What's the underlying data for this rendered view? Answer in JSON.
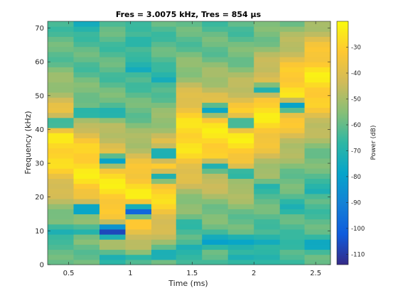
{
  "chart_data": {
    "type": "heatmap",
    "title": "Fres = 3.0075 kHz, Tres = 854 µs",
    "xlabel": "Time (ms)",
    "ylabel": "Frequency (kHz)",
    "colorbar_label": "Power (dB)",
    "xlim": [
      0.33,
      2.62
    ],
    "ylim": [
      0,
      72
    ],
    "clim": [
      -114,
      -20
    ],
    "x_ticks": [
      0.5,
      1,
      1.5,
      2,
      2.5
    ],
    "x_tick_labels": [
      "0.5",
      "1",
      "1.5",
      "2",
      "2.5"
    ],
    "y_ticks": [
      0,
      10,
      20,
      30,
      40,
      50,
      60,
      70
    ],
    "y_tick_labels": [
      "0",
      "10",
      "20",
      "30",
      "40",
      "50",
      "60",
      "70"
    ],
    "c_ticks": [
      -110,
      -100,
      -90,
      -80,
      -70,
      -60,
      -50,
      -40,
      -30
    ],
    "c_tick_labels": [
      "-110",
      "-100",
      "-90",
      "-80",
      "-70",
      "-60",
      "-50",
      "-40",
      "-30"
    ],
    "colormap": "parula",
    "time_frames_ms": [
      0.33,
      0.54,
      0.75,
      0.96,
      1.17,
      1.37,
      1.58,
      1.79,
      2.0,
      2.21,
      2.41,
      2.62
    ],
    "frame_peak_khz": [
      35,
      28,
      24,
      20,
      24,
      38,
      38,
      38,
      45,
      50,
      55,
      60
    ],
    "frame_power_notches": [
      [
        [
          42,
          -70
        ],
        [
          10,
          -72
        ]
      ],
      [
        [
          71,
          -75
        ],
        [
          45,
          -72
        ],
        [
          16.5,
          -85
        ],
        [
          10,
          -70
        ]
      ],
      [
        [
          45,
          -72
        ],
        [
          31,
          -80
        ],
        [
          10,
          -108
        ],
        [
          2,
          -72
        ]
      ],
      [
        [
          66,
          -70
        ],
        [
          58,
          -75
        ],
        [
          16,
          -100
        ],
        [
          2,
          -68
        ]
      ],
      [
        [
          55,
          -74
        ],
        [
          33,
          -78
        ],
        [
          26,
          -72
        ],
        [
          3,
          -75
        ]
      ],
      [
        [
          12,
          -68
        ],
        [
          5,
          -72
        ]
      ],
      [
        [
          46,
          -78
        ],
        [
          29,
          -72
        ],
        [
          7,
          -80
        ]
      ],
      [
        [
          42,
          -70
        ],
        [
          27,
          -72
        ],
        [
          7,
          -78
        ],
        [
          2,
          -72
        ]
      ],
      [
        [
          52,
          -72
        ],
        [
          23,
          -70
        ],
        [
          7,
          -75
        ],
        [
          2,
          -70
        ]
      ],
      [
        [
          47,
          -80
        ],
        [
          17,
          -72
        ],
        [
          6,
          -68
        ]
      ],
      [
        [
          22,
          -72
        ],
        [
          6,
          -78
        ]
      ],
      [
        [
          67,
          -76
        ],
        [
          6,
          -105
        ]
      ]
    ]
  }
}
